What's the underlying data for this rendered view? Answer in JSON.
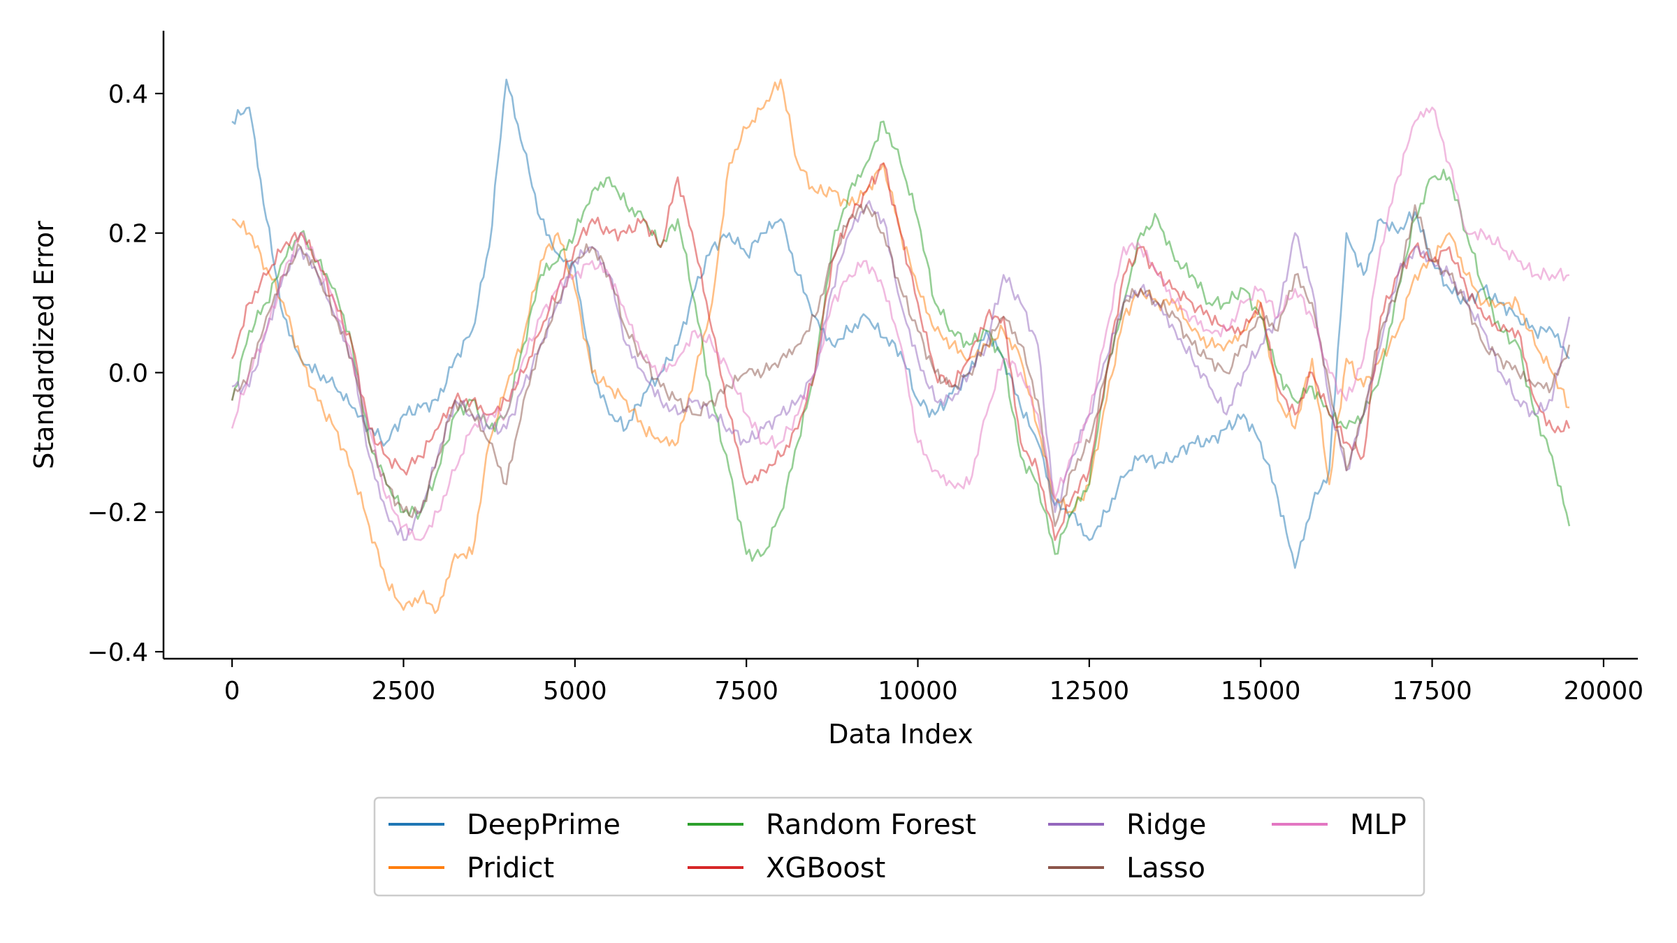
{
  "chart_data": {
    "type": "line",
    "title": "",
    "xlabel": "Data Index",
    "ylabel": "Standardized Error",
    "xlim": [
      -1000,
      20500
    ],
    "ylim": [
      -0.41,
      0.49
    ],
    "xticks": [
      0,
      2500,
      5000,
      7500,
      10000,
      12500,
      15000,
      17500,
      20000
    ],
    "yticks": [
      -0.4,
      -0.2,
      0.0,
      0.2,
      0.4
    ],
    "xtick_labels": [
      "0",
      "2500",
      "5000",
      "7500",
      "10000",
      "12500",
      "15000",
      "17500",
      "20000"
    ],
    "ytick_labels": [
      "−0.4",
      "−0.2",
      "0.0",
      "0.2",
      "0.4"
    ],
    "grid": false,
    "legend_position": "bottom-center",
    "legend_columns": 4,
    "series": [
      {
        "name": "DeepPrime",
        "color": "#1f77b4",
        "x": [
          0,
          250,
          500,
          750,
          1000,
          1250,
          1500,
          1750,
          2000,
          2250,
          2500,
          2750,
          3000,
          3250,
          3500,
          3750,
          4000,
          4250,
          4500,
          4750,
          5000,
          5250,
          5500,
          5750,
          6000,
          6250,
          6500,
          6750,
          7000,
          7250,
          7500,
          7750,
          8000,
          8250,
          8500,
          8750,
          9000,
          9250,
          9500,
          9750,
          10000,
          10250,
          10500,
          10750,
          11000,
          11250,
          11500,
          11750,
          12000,
          12250,
          12500,
          12750,
          13000,
          13250,
          13500,
          13750,
          14000,
          14250,
          14500,
          14750,
          15000,
          15250,
          15500,
          15750,
          16000,
          16250,
          16500,
          16750,
          17000,
          17250,
          17500,
          17750,
          18000,
          18250,
          18500,
          18750,
          19000,
          19250,
          19500
        ],
        "y": [
          0.36,
          0.38,
          0.22,
          0.08,
          0.02,
          0.0,
          -0.02,
          -0.05,
          -0.08,
          -0.1,
          -0.06,
          -0.05,
          -0.04,
          0.02,
          0.06,
          0.18,
          0.42,
          0.32,
          0.22,
          0.17,
          0.15,
          0.0,
          -0.06,
          -0.08,
          -0.03,
          0.0,
          0.04,
          0.12,
          0.18,
          0.2,
          0.17,
          0.2,
          0.22,
          0.14,
          0.08,
          0.04,
          0.06,
          0.08,
          0.05,
          0.03,
          -0.04,
          -0.06,
          -0.03,
          0.0,
          0.06,
          0.02,
          -0.05,
          -0.1,
          -0.19,
          -0.2,
          -0.24,
          -0.2,
          -0.15,
          -0.12,
          -0.13,
          -0.12,
          -0.1,
          -0.1,
          -0.08,
          -0.06,
          -0.1,
          -0.18,
          -0.28,
          -0.19,
          -0.14,
          0.2,
          0.14,
          0.22,
          0.2,
          0.23,
          0.16,
          0.12,
          0.1,
          0.12,
          0.1,
          0.08,
          0.06,
          0.06,
          0.02
        ]
      },
      {
        "name": "Pridict",
        "color": "#ff7f0e",
        "x": [
          0,
          250,
          500,
          750,
          1000,
          1250,
          1500,
          1750,
          2000,
          2250,
          2500,
          2750,
          3000,
          3250,
          3500,
          3750,
          4000,
          4250,
          4500,
          4750,
          5000,
          5250,
          5500,
          5750,
          6000,
          6250,
          6500,
          6750,
          7000,
          7250,
          7500,
          7750,
          8000,
          8250,
          8500,
          8750,
          9000,
          9250,
          9500,
          9750,
          10000,
          10250,
          10500,
          10750,
          11000,
          11250,
          11500,
          11750,
          12000,
          12250,
          12500,
          12750,
          13000,
          13250,
          13500,
          13750,
          14000,
          14250,
          14500,
          14750,
          15000,
          15250,
          15500,
          15750,
          16000,
          16250,
          16500,
          16750,
          17000,
          17250,
          17500,
          17750,
          18000,
          18250,
          18500,
          18750,
          19000,
          19250,
          19500
        ],
        "y": [
          0.22,
          0.2,
          0.15,
          0.1,
          0.02,
          -0.04,
          -0.08,
          -0.14,
          -0.22,
          -0.3,
          -0.34,
          -0.32,
          -0.34,
          -0.26,
          -0.26,
          -0.1,
          -0.02,
          0.05,
          0.16,
          0.2,
          0.12,
          0.0,
          -0.02,
          -0.04,
          -0.08,
          -0.1,
          -0.1,
          0.0,
          0.1,
          0.3,
          0.35,
          0.38,
          0.42,
          0.3,
          0.26,
          0.26,
          0.24,
          0.26,
          0.3,
          0.2,
          0.12,
          0.06,
          0.04,
          0.02,
          0.04,
          0.06,
          0.02,
          -0.08,
          -0.18,
          -0.2,
          -0.16,
          -0.04,
          0.08,
          0.12,
          0.1,
          0.1,
          0.06,
          0.04,
          0.04,
          0.06,
          0.1,
          -0.04,
          -0.08,
          0.02,
          -0.16,
          0.02,
          -0.02,
          0.02,
          0.06,
          0.14,
          0.16,
          0.2,
          0.14,
          0.1,
          0.1,
          0.1,
          0.04,
          0.0,
          -0.05
        ]
      },
      {
        "name": "Random Forest",
        "color": "#2ca02c",
        "x": [
          0,
          250,
          500,
          750,
          1000,
          1250,
          1500,
          1750,
          2000,
          2250,
          2500,
          2750,
          3000,
          3250,
          3500,
          3750,
          4000,
          4250,
          4500,
          4750,
          5000,
          5250,
          5500,
          5750,
          6000,
          6250,
          6500,
          6750,
          7000,
          7250,
          7500,
          7750,
          8000,
          8250,
          8500,
          8750,
          9000,
          9250,
          9500,
          9750,
          10000,
          10250,
          10500,
          10750,
          11000,
          11250,
          11500,
          11750,
          12000,
          12250,
          12500,
          12750,
          13000,
          13250,
          13500,
          13750,
          14000,
          14250,
          14500,
          14750,
          15000,
          15250,
          15500,
          15750,
          16000,
          16250,
          16500,
          16750,
          17000,
          17250,
          17500,
          17750,
          18000,
          18250,
          18500,
          18750,
          19000,
          19250,
          19500
        ],
        "y": [
          -0.04,
          0.06,
          0.1,
          0.16,
          0.2,
          0.16,
          0.12,
          0.04,
          -0.1,
          -0.16,
          -0.2,
          -0.2,
          -0.14,
          -0.06,
          -0.04,
          -0.08,
          -0.06,
          0.04,
          0.14,
          0.16,
          0.2,
          0.26,
          0.28,
          0.24,
          0.22,
          0.18,
          0.22,
          0.1,
          -0.04,
          -0.14,
          -0.26,
          -0.26,
          -0.2,
          -0.1,
          0.0,
          0.18,
          0.26,
          0.3,
          0.36,
          0.3,
          0.22,
          0.1,
          0.06,
          0.04,
          0.06,
          0.02,
          -0.12,
          -0.16,
          -0.26,
          -0.2,
          -0.16,
          0.0,
          0.1,
          0.2,
          0.22,
          0.16,
          0.14,
          0.1,
          0.1,
          0.12,
          0.08,
          0.0,
          -0.04,
          -0.02,
          -0.06,
          -0.08,
          -0.06,
          0.0,
          0.12,
          0.22,
          0.28,
          0.28,
          0.2,
          0.12,
          0.06,
          0.04,
          -0.06,
          -0.12,
          -0.22
        ]
      },
      {
        "name": "XGBoost",
        "color": "#d62728",
        "x": [
          0,
          250,
          500,
          750,
          1000,
          1250,
          1500,
          1750,
          2000,
          2250,
          2500,
          2750,
          3000,
          3250,
          3500,
          3750,
          4000,
          4250,
          4500,
          4750,
          5000,
          5250,
          5500,
          5750,
          6000,
          6250,
          6500,
          6750,
          7000,
          7250,
          7500,
          7750,
          8000,
          8250,
          8500,
          8750,
          9000,
          9250,
          9500,
          9750,
          10000,
          10250,
          10500,
          10750,
          11000,
          11250,
          11500,
          11750,
          12000,
          12250,
          12500,
          12750,
          13000,
          13250,
          13500,
          13750,
          14000,
          14250,
          14500,
          14750,
          15000,
          15250,
          15500,
          15750,
          16000,
          16250,
          16500,
          16750,
          17000,
          17250,
          17500,
          17750,
          18000,
          18250,
          18500,
          18750,
          19000,
          19250,
          19500
        ],
        "y": [
          0.02,
          0.1,
          0.14,
          0.18,
          0.2,
          0.16,
          0.1,
          0.04,
          -0.08,
          -0.12,
          -0.14,
          -0.12,
          -0.08,
          -0.04,
          -0.04,
          -0.06,
          -0.04,
          0.0,
          0.06,
          0.12,
          0.18,
          0.22,
          0.2,
          0.2,
          0.22,
          0.18,
          0.28,
          0.18,
          0.06,
          -0.06,
          -0.16,
          -0.14,
          -0.12,
          -0.08,
          0.0,
          0.16,
          0.22,
          0.26,
          0.3,
          0.2,
          0.1,
          0.0,
          -0.02,
          0.02,
          0.08,
          0.08,
          -0.1,
          -0.14,
          -0.24,
          -0.18,
          -0.14,
          0.0,
          0.14,
          0.18,
          0.14,
          0.12,
          0.1,
          0.08,
          0.06,
          0.06,
          0.1,
          -0.02,
          -0.06,
          0.0,
          -0.06,
          -0.1,
          -0.12,
          0.08,
          0.14,
          0.18,
          0.16,
          0.18,
          0.12,
          0.08,
          0.06,
          0.06,
          -0.04,
          -0.08,
          -0.08
        ]
      },
      {
        "name": "Ridge",
        "color": "#9467bd",
        "x": [
          0,
          250,
          500,
          750,
          1000,
          1250,
          1500,
          1750,
          2000,
          2250,
          2500,
          2750,
          3000,
          3250,
          3500,
          3750,
          4000,
          4250,
          4500,
          4750,
          5000,
          5250,
          5500,
          5750,
          6000,
          6250,
          6500,
          6750,
          7000,
          7250,
          7500,
          7750,
          8000,
          8250,
          8500,
          8750,
          9000,
          9250,
          9500,
          9750,
          10000,
          10250,
          10500,
          10750,
          11000,
          11250,
          11500,
          11750,
          12000,
          12250,
          12500,
          12750,
          13000,
          13250,
          13500,
          13750,
          14000,
          14250,
          14500,
          14750,
          15000,
          15250,
          15500,
          15750,
          16000,
          16250,
          16500,
          16750,
          17000,
          17250,
          17500,
          17750,
          18000,
          18250,
          18500,
          18750,
          19000,
          19250,
          19500
        ],
        "y": [
          -0.02,
          -0.02,
          0.06,
          0.14,
          0.18,
          0.14,
          0.08,
          0.02,
          -0.12,
          -0.2,
          -0.24,
          -0.2,
          -0.12,
          -0.04,
          -0.06,
          -0.08,
          -0.08,
          -0.02,
          0.04,
          0.1,
          0.16,
          0.18,
          0.14,
          0.04,
          0.0,
          -0.04,
          -0.06,
          -0.04,
          -0.06,
          -0.08,
          -0.1,
          -0.08,
          -0.06,
          -0.04,
          0.0,
          0.12,
          0.2,
          0.24,
          0.22,
          0.1,
          0.02,
          -0.04,
          -0.04,
          0.0,
          0.04,
          0.14,
          0.1,
          0.04,
          -0.2,
          -0.12,
          -0.06,
          0.02,
          0.1,
          0.12,
          0.1,
          0.06,
          0.02,
          -0.02,
          -0.06,
          0.0,
          0.04,
          0.08,
          0.2,
          0.12,
          -0.04,
          -0.14,
          -0.06,
          0.04,
          0.14,
          0.18,
          0.16,
          0.14,
          0.1,
          0.06,
          0.0,
          -0.04,
          -0.06,
          -0.04,
          0.08
        ]
      },
      {
        "name": "Lasso",
        "color": "#8c564b",
        "x": [
          0,
          250,
          500,
          750,
          1000,
          1250,
          1500,
          1750,
          2000,
          2250,
          2500,
          2750,
          3000,
          3250,
          3500,
          3750,
          4000,
          4250,
          4500,
          4750,
          5000,
          5250,
          5500,
          5750,
          6000,
          6250,
          6500,
          6750,
          7000,
          7250,
          7500,
          7750,
          8000,
          8250,
          8500,
          8750,
          9000,
          9250,
          9500,
          9750,
          10000,
          10250,
          10500,
          10750,
          11000,
          11250,
          11500,
          11750,
          12000,
          12250,
          12500,
          12750,
          13000,
          13250,
          13500,
          13750,
          14000,
          14250,
          14500,
          14750,
          15000,
          15250,
          15500,
          15750,
          16000,
          16250,
          16500,
          16750,
          17000,
          17250,
          17500,
          17750,
          18000,
          18250,
          18500,
          18750,
          19000,
          19250,
          19500
        ],
        "y": [
          -0.04,
          0.0,
          0.08,
          0.14,
          0.18,
          0.14,
          0.08,
          0.02,
          -0.1,
          -0.16,
          -0.2,
          -0.2,
          -0.12,
          -0.04,
          -0.06,
          -0.1,
          -0.16,
          -0.04,
          0.04,
          0.1,
          0.16,
          0.18,
          0.14,
          0.06,
          0.02,
          -0.02,
          -0.04,
          -0.06,
          -0.04,
          -0.02,
          0.0,
          0.0,
          0.02,
          0.04,
          0.08,
          0.16,
          0.22,
          0.24,
          0.2,
          0.12,
          0.06,
          0.0,
          -0.02,
          0.0,
          0.04,
          0.08,
          0.04,
          -0.04,
          -0.22,
          -0.14,
          -0.1,
          0.0,
          0.1,
          0.12,
          0.1,
          0.08,
          0.04,
          0.02,
          0.0,
          0.04,
          0.08,
          0.06,
          0.14,
          0.1,
          -0.02,
          -0.14,
          -0.06,
          0.06,
          0.12,
          0.24,
          0.16,
          0.14,
          0.1,
          0.04,
          0.02,
          0.0,
          -0.02,
          -0.02,
          0.04
        ]
      },
      {
        "name": "MLP",
        "color": "#e377c2",
        "x": [
          0,
          250,
          500,
          750,
          1000,
          1250,
          1500,
          1750,
          2000,
          2250,
          2500,
          2750,
          3000,
          3250,
          3500,
          3750,
          4000,
          4250,
          4500,
          4750,
          5000,
          5250,
          5500,
          5750,
          6000,
          6250,
          6500,
          6750,
          7000,
          7250,
          7500,
          7750,
          8000,
          8250,
          8500,
          8750,
          9000,
          9250,
          9500,
          9750,
          10000,
          10250,
          10500,
          10750,
          11000,
          11250,
          11500,
          11750,
          12000,
          12250,
          12500,
          12750,
          13000,
          13250,
          13500,
          13750,
          14000,
          14250,
          14500,
          14750,
          15000,
          15250,
          15500,
          15750,
          16000,
          16250,
          16500,
          16750,
          17000,
          17250,
          17500,
          17750,
          18000,
          18250,
          18500,
          18750,
          19000,
          19250,
          19500
        ],
        "y": [
          -0.08,
          0.0,
          0.06,
          0.14,
          0.2,
          0.16,
          0.1,
          0.02,
          -0.08,
          -0.18,
          -0.22,
          -0.24,
          -0.2,
          -0.14,
          -0.08,
          -0.06,
          -0.06,
          0.02,
          0.08,
          0.12,
          0.14,
          0.16,
          0.14,
          0.08,
          0.02,
          0.0,
          0.02,
          0.06,
          0.04,
          0.0,
          -0.06,
          -0.1,
          -0.1,
          -0.06,
          0.0,
          0.1,
          0.14,
          0.16,
          0.12,
          0.04,
          -0.1,
          -0.14,
          -0.16,
          -0.16,
          -0.06,
          0.02,
          0.0,
          -0.06,
          -0.18,
          -0.12,
          -0.06,
          0.06,
          0.18,
          0.18,
          0.14,
          0.1,
          0.08,
          0.06,
          0.06,
          0.1,
          0.12,
          0.08,
          0.12,
          0.08,
          0.0,
          -0.04,
          0.02,
          0.18,
          0.28,
          0.36,
          0.38,
          0.3,
          0.2,
          0.2,
          0.18,
          0.16,
          0.14,
          0.14,
          0.14
        ]
      }
    ]
  }
}
